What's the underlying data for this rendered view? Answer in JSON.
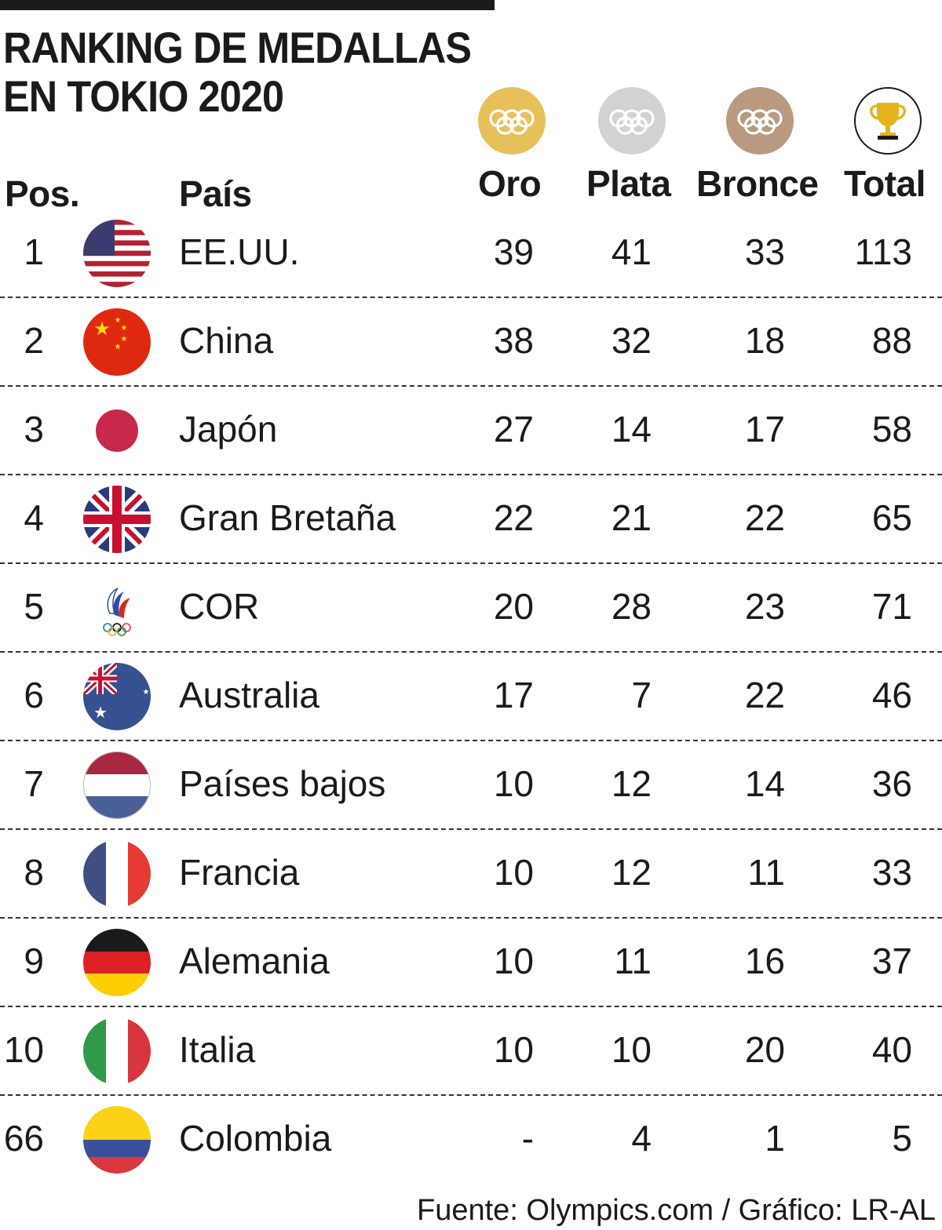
{
  "title_line1": "RANKING DE MEDALLAS",
  "title_line2": "EN TOKIO 2020",
  "headers": {
    "pos": "Pos.",
    "country": "País",
    "gold": "Oro",
    "silver": "Plata",
    "bronze": "Bronce",
    "total": "Total"
  },
  "medal_icons": {
    "gold": "gold-medal-rings-icon",
    "silver": "silver-medal-rings-icon",
    "bronze": "bronze-medal-rings-icon",
    "total": "trophy-icon"
  },
  "colors": {
    "gold": "#e8c05a",
    "silver": "#d2d2d2",
    "bronze": "#b99a7f",
    "trophy": "#e6b31e"
  },
  "rows": [
    {
      "pos": "1",
      "country": "EE.UU.",
      "flag": "usa-flag-icon",
      "gold": "39",
      "silver": "41",
      "bronze": "33",
      "total": "113"
    },
    {
      "pos": "2",
      "country": "China",
      "flag": "china-flag-icon",
      "gold": "38",
      "silver": "32",
      "bronze": "18",
      "total": "88"
    },
    {
      "pos": "3",
      "country": "Japón",
      "flag": "japan-flag-icon",
      "gold": "27",
      "silver": "14",
      "bronze": "17",
      "total": "58"
    },
    {
      "pos": "4",
      "country": "Gran Bretaña",
      "flag": "uk-flag-icon",
      "gold": "22",
      "silver": "21",
      "bronze": "22",
      "total": "65"
    },
    {
      "pos": "5",
      "country": "COR",
      "flag": "roc-emblem-icon",
      "gold": "20",
      "silver": "28",
      "bronze": "23",
      "total": "71"
    },
    {
      "pos": "6",
      "country": "Australia",
      "flag": "australia-flag-icon",
      "gold": "17",
      "silver": "7",
      "bronze": "22",
      "total": "46"
    },
    {
      "pos": "7",
      "country": "Países bajos",
      "flag": "netherlands-flag-icon",
      "gold": "10",
      "silver": "12",
      "bronze": "14",
      "total": "36"
    },
    {
      "pos": "8",
      "country": "Francia",
      "flag": "france-flag-icon",
      "gold": "10",
      "silver": "12",
      "bronze": "11",
      "total": "33"
    },
    {
      "pos": "9",
      "country": "Alemania",
      "flag": "germany-flag-icon",
      "gold": "10",
      "silver": "11",
      "bronze": "16",
      "total": "37"
    },
    {
      "pos": "10",
      "country": "Italia",
      "flag": "italy-flag-icon",
      "gold": "10",
      "silver": "10",
      "bronze": "20",
      "total": "40"
    },
    {
      "pos": "66",
      "country": "Colombia",
      "flag": "colombia-flag-icon",
      "gold": "-",
      "silver": "4",
      "bronze": "1",
      "total": "5"
    }
  ],
  "source": "Fuente: Olympics.com / Gráfico: LR-AL"
}
